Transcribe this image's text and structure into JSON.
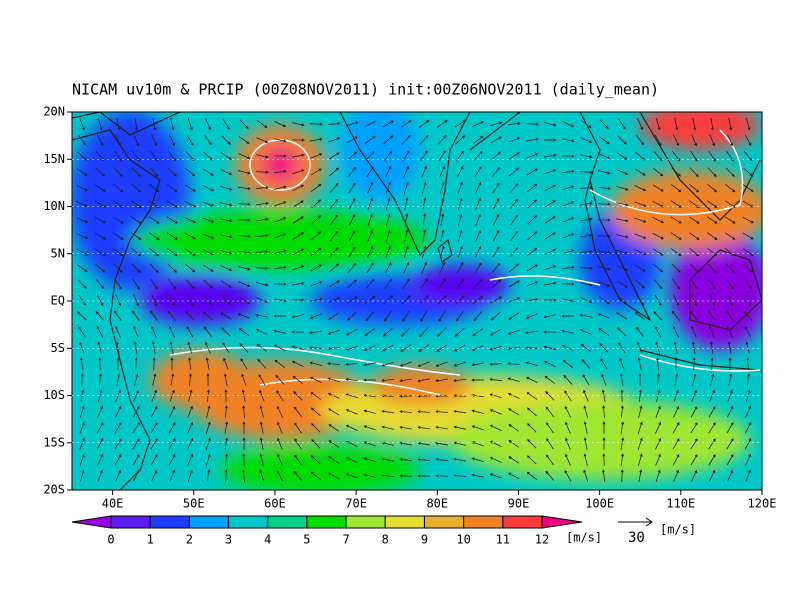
{
  "header": {
    "title": "NICAM uv10m & PRCIP (00Z08NOV2011) init:00Z06NOV2011 (daily_mean)"
  },
  "map": {
    "x_tick_labels": [
      "40E",
      "50E",
      "60E",
      "70E",
      "80E",
      "90E",
      "100E",
      "110E",
      "120E"
    ],
    "y_tick_labels": [
      "20N",
      "15N",
      "10N",
      "5N",
      "EQ",
      "5S",
      "10S",
      "15S",
      "20S"
    ]
  },
  "colorbar": {
    "labels": [
      "0",
      "1",
      "2",
      "3",
      "4",
      "5",
      "7",
      "8",
      "9",
      "10",
      "11",
      "12"
    ],
    "unit": "[m/s]"
  },
  "vector_legend": {
    "label": "30",
    "unit": "[m/s]"
  }
}
